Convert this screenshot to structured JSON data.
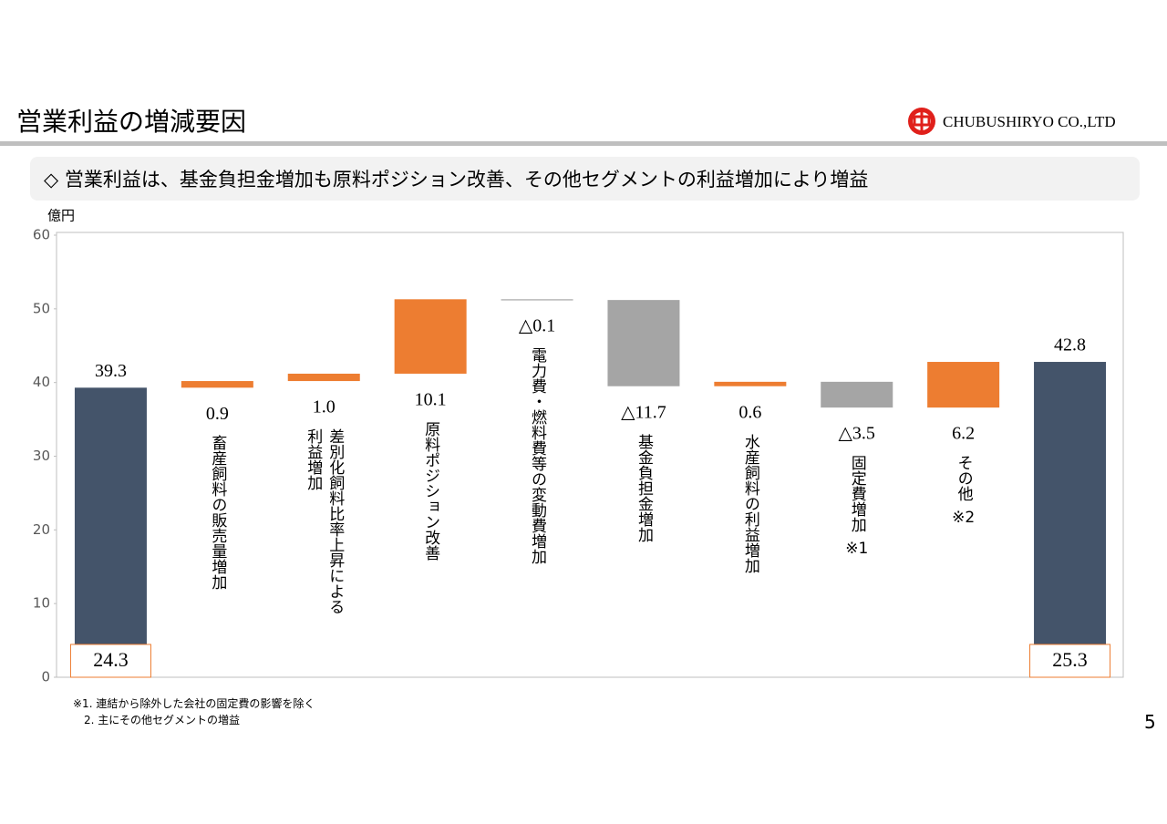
{
  "header": {
    "title": "営業利益の増減要因",
    "company": "CHUBUSHIRYO CO.,LTD",
    "page_number": "5"
  },
  "subtitle": "◇ 営業利益は、基金負担金増加も原料ポジション改善、その他セグメントの利益増加により増益",
  "footnotes": [
    "※1. 連結から除外した会社の固定費の影響を除く",
    "2. 主にその他セグメントの増益"
  ],
  "chart_data": {
    "type": "waterfall",
    "y_label": "億円",
    "categories": [
      null,
      "畜産飼料の販売量増加",
      "差別化飼料比率上昇による\n利益増加",
      "原料ポジション改善",
      "電力費・燃料費等の変動費増加",
      "基金負担金増加",
      "水産飼料の利益増加",
      "固定費増加",
      "その他",
      null
    ],
    "category_notes": [
      null,
      null,
      null,
      null,
      null,
      null,
      null,
      "※1",
      "※2",
      null
    ],
    "values": [
      39.3,
      0.9,
      1.0,
      10.1,
      -0.1,
      -11.7,
      0.6,
      -3.5,
      6.2,
      42.8
    ],
    "value_labels": [
      "39.3",
      "0.9",
      "1.0",
      "10.1",
      "△0.1",
      "△11.7",
      "0.6",
      "△3.5",
      "6.2",
      "42.8"
    ],
    "base_labels": [
      "24.3",
      null,
      null,
      null,
      null,
      null,
      null,
      null,
      null,
      "25.3"
    ],
    "colors": {
      "total": "#44546a",
      "increase": "#ed7d31",
      "decrease": "#a5a5a5"
    },
    "ylim": [
      0,
      60
    ],
    "yticks": [
      0,
      10,
      20,
      30,
      40,
      50,
      60
    ],
    "grid": false
  }
}
